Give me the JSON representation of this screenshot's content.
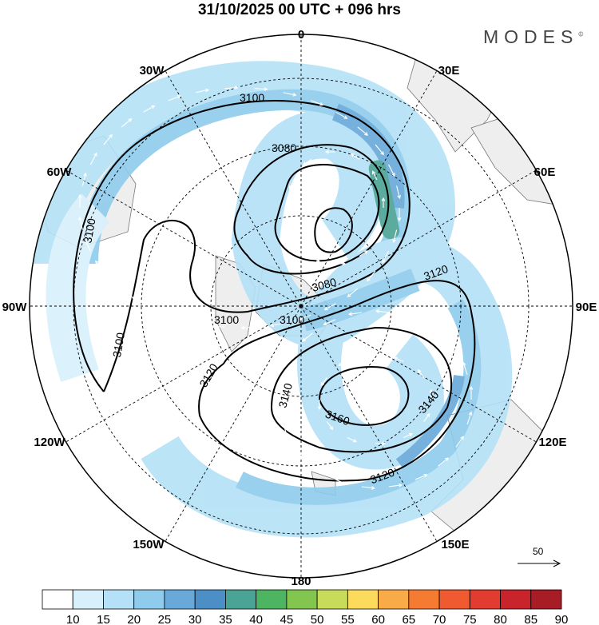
{
  "title": "31/10/2025  00 UTC  + 096 hrs",
  "logo": {
    "text": "MODES",
    "mark": "©"
  },
  "longitude_labels": [
    "0",
    "30E",
    "60E",
    "90E",
    "120E",
    "150E",
    "180",
    "150W",
    "120W",
    "90W",
    "60W",
    "30W"
  ],
  "contour_labels": [
    "3100",
    "3080",
    "3100",
    "3100",
    "3080",
    "3120",
    "3100",
    "3100",
    "3120",
    "3140",
    "3160",
    "3140",
    "3120"
  ],
  "reference_vector": {
    "label": "50"
  },
  "colorbar": {
    "ticks": [
      "10",
      "15",
      "20",
      "25",
      "30",
      "35",
      "40",
      "45",
      "50",
      "55",
      "60",
      "65",
      "70",
      "75",
      "80",
      "85",
      "90"
    ],
    "colors": [
      "#ffffff",
      "#d8f0fb",
      "#b4e1f7",
      "#8ecbec",
      "#68a9da",
      "#4b8fc6",
      "#4aa495",
      "#4db461",
      "#82c650",
      "#c8dc5a",
      "#fcdb5c",
      "#f9ab48",
      "#f57b33",
      "#ef5a30",
      "#e23b30",
      "#c9242b",
      "#a81c26",
      "#8b1a1f"
    ]
  },
  "colors": {
    "land": "#eeeeee",
    "coast": "#777777"
  }
}
